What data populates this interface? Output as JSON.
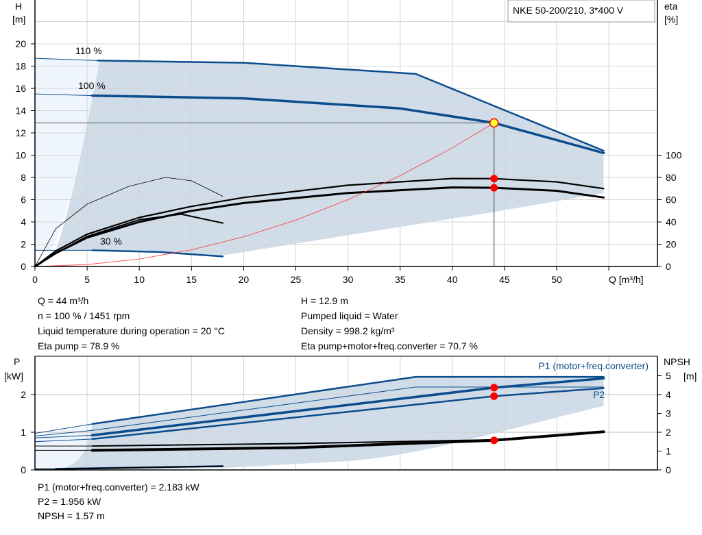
{
  "chart_data": [
    {
      "type": "line",
      "title": "NKE 50-200/210, 3*400 V",
      "xlabel": "Q [m³/h]",
      "ylabel": "H\n[m]",
      "ylabel_left": [
        "H",
        "[m]"
      ],
      "ylabel_right": [
        "eta",
        "[%]"
      ],
      "xlim": [
        0,
        60
      ],
      "xticks": [
        0,
        5,
        10,
        15,
        20,
        25,
        30,
        35,
        40,
        45,
        50
      ],
      "ylim": [
        0,
        22
      ],
      "yticks": [
        0,
        2,
        4,
        6,
        8,
        10,
        12,
        14,
        16,
        18,
        20
      ],
      "y2_ticks": [
        0,
        20,
        40,
        60,
        80,
        100
      ],
      "grid": true,
      "curve_labels": [
        "110 %",
        "100 %",
        "30 %"
      ],
      "colors": {
        "head": "#0b4c8c",
        "eta": "#000000",
        "system": "#ff3333",
        "area": "#d0dce8",
        "area_light": "#eef5fc",
        "point": "#ff0000",
        "op_point": "#ffff33"
      },
      "series": [
        {
          "name": "110 %",
          "kind": "head",
          "x": [
            0,
            6,
            20,
            36.5,
            54.5
          ],
          "y": [
            18.7,
            18.5,
            18.3,
            17.3,
            10.4
          ]
        },
        {
          "name": "100 %",
          "kind": "head",
          "x": [
            0,
            5.5,
            20,
            35,
            44,
            54.5
          ],
          "y": [
            15.5,
            15.35,
            15.1,
            14.2,
            12.9,
            10.2
          ]
        },
        {
          "name": "30 %",
          "kind": "head",
          "x": [
            0,
            5.5,
            12,
            18
          ],
          "y": [
            1.45,
            1.45,
            1.3,
            0.9
          ]
        },
        {
          "kind": "eta_pump",
          "x": [
            0,
            2,
            5,
            10,
            15,
            20,
            30,
            40,
            44,
            50,
            54.5
          ],
          "y_percent": [
            0,
            14,
            29,
            44,
            54,
            62,
            73,
            79,
            78.9,
            76,
            70
          ]
        },
        {
          "kind": "eta_total",
          "x": [
            0,
            2,
            5,
            10,
            15,
            20,
            30,
            40,
            44,
            50,
            54.5
          ],
          "y_percent": [
            0,
            12,
            26,
            40,
            50,
            57,
            66,
            71,
            70.7,
            68,
            62
          ]
        },
        {
          "kind": "eta_pump_30",
          "x": [
            0,
            2,
            5,
            10,
            14,
            18
          ],
          "y_percent": [
            0,
            12,
            27,
            42,
            47,
            39
          ]
        },
        {
          "kind": "eta_thin",
          "x": [
            0,
            2,
            5,
            9,
            12.5,
            15,
            18
          ],
          "y_percent": [
            0,
            34,
            56,
            72,
            80,
            77,
            63
          ]
        },
        {
          "kind": "system",
          "x": [
            0,
            5,
            10,
            15,
            20,
            25,
            30,
            35,
            40,
            44
          ],
          "y": [
            0,
            0.17,
            0.67,
            1.5,
            2.67,
            4.16,
            6.0,
            8.16,
            10.66,
            12.9
          ]
        }
      ],
      "operating_point": {
        "Q": 44,
        "H": 12.9,
        "eta_pump": 78.9,
        "eta_total": 70.7
      }
    },
    {
      "type": "line",
      "ylabel_left": [
        "P",
        "[kW]"
      ],
      "ylabel_right": [
        "NPSH",
        "[m]"
      ],
      "xlim": [
        0,
        60
      ],
      "ylim": [
        0,
        2.9
      ],
      "yticks": [
        0,
        1,
        2
      ],
      "y2_ticks": [
        0,
        1,
        2,
        3,
        4,
        5
      ],
      "grid": true,
      "curve_labels": [
        "P1 (motor+freq.converter)",
        "P2"
      ],
      "series": [
        {
          "name": "P1 110 %",
          "kind": "power",
          "x": [
            0,
            5.5,
            36.5,
            54.5
          ],
          "y": [
            0.97,
            1.22,
            2.47,
            2.47
          ]
        },
        {
          "name": "P1 (motor+freq.converter)",
          "kind": "power",
          "x": [
            0,
            5.5,
            44,
            54.5
          ],
          "y": [
            0.85,
            0.92,
            2.183,
            2.43
          ]
        },
        {
          "name": "P2 110 %",
          "kind": "power",
          "x": [
            0,
            5.5,
            36.5,
            54.5
          ],
          "y": [
            0.9,
            1.05,
            2.2,
            2.2
          ]
        },
        {
          "name": "P2",
          "kind": "power",
          "x": [
            0,
            5.5,
            44,
            54.5
          ],
          "y": [
            0.75,
            0.82,
            1.956,
            2.17
          ]
        },
        {
          "name": "P 30 %",
          "kind": "power",
          "x": [
            0,
            2,
            18
          ],
          "y": [
            0.03,
            0.03,
            0.1
          ]
        },
        {
          "kind": "npsh",
          "x": [
            0,
            5.5,
            25,
            44,
            54.5
          ],
          "y_m": [
            1.27,
            1.27,
            1.4,
            1.6,
            2.03
          ]
        },
        {
          "kind": "npsh",
          "x": [
            0,
            5.5,
            25,
            44,
            54.5
          ],
          "y_m": [
            1.04,
            1.04,
            1.18,
            1.57,
            2.03
          ]
        },
        {
          "kind": "npsh",
          "x": [
            0,
            2,
            18
          ],
          "y_m": [
            0.04,
            0.04,
            0.2
          ]
        }
      ],
      "operating_point": {
        "Q": 44,
        "P1": 2.183,
        "P2": 1.956,
        "NPSH": 1.57
      }
    }
  ],
  "readout_top": [
    "Q = 44 m³/h",
    "n = 100 % / 1451 rpm",
    "Liquid temperature during operation = 20 °C",
    "Eta pump = 78.9 %"
  ],
  "readout_top_right": [
    "H = 12.9 m",
    "Pumped liquid = Water",
    "Density = 998.2 kg/m³",
    "Eta pump+motor+freq.converter = 70.7 %"
  ],
  "readout_bottom": [
    "P1 (motor+freq.converter) = 2.183 kW",
    "P2 = 1.956 kW",
    "NPSH = 1.57 m"
  ]
}
